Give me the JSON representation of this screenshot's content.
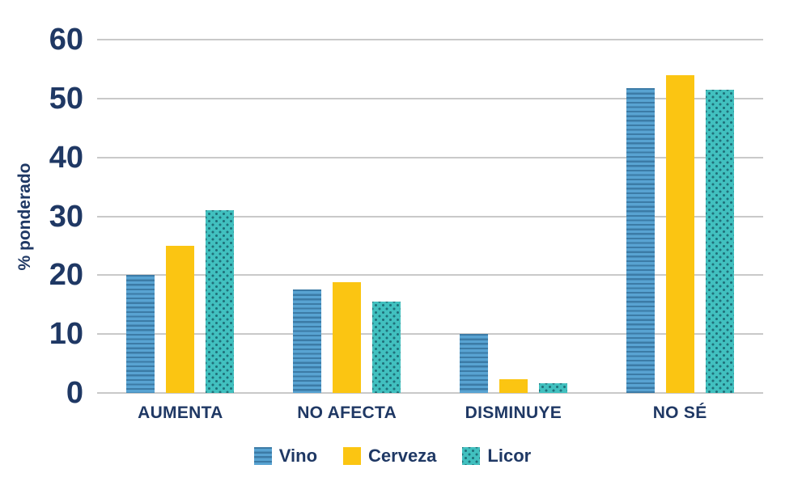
{
  "chart_data": {
    "type": "bar",
    "categories": [
      "AUMENTA",
      "NO AFECTA",
      "DISMINUYE",
      "NO SÉ"
    ],
    "series": [
      {
        "name": "Vino",
        "pattern": "stripes",
        "color": "#58A3D2",
        "pattern_color": "#3C7BA6",
        "values": [
          20,
          17.6,
          10,
          51.7
        ]
      },
      {
        "name": "Cerveza",
        "pattern": "solid",
        "color": "#FBC512",
        "pattern_color": "#FBC512",
        "values": [
          25,
          18.8,
          2.4,
          54.0
        ]
      },
      {
        "name": "Licor",
        "pattern": "dots",
        "color": "#41C0BF",
        "pattern_color": "#20707A",
        "values": [
          31,
          15.5,
          1.7,
          51.5
        ]
      }
    ],
    "title": "",
    "xlabel": "",
    "ylabel": "% ponderado",
    "ylim": [
      0,
      60
    ],
    "ytick_step": 10,
    "yticks": [
      "0",
      "10",
      "20",
      "30",
      "40",
      "50",
      "60"
    ],
    "grid": true,
    "legend_position": "bottom",
    "axis_text_color": "#1F3864",
    "gridline_color": "#C9C9C9"
  }
}
